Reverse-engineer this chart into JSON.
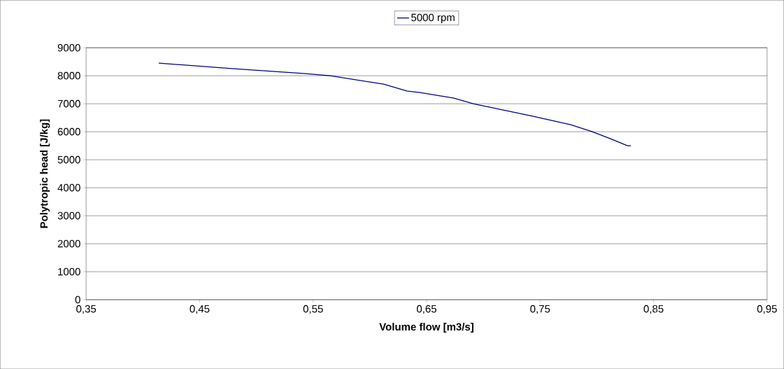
{
  "chart_data": {
    "type": "line",
    "xlabel": "Volume flow [m3/s]",
    "ylabel": "Polytropic head [J/kg]",
    "xlim": [
      0.35,
      0.95
    ],
    "ylim": [
      0,
      9000
    ],
    "xticks": [
      {
        "value": 0.35,
        "label": "0,35"
      },
      {
        "value": 0.45,
        "label": "0,45"
      },
      {
        "value": 0.55,
        "label": "0,55"
      },
      {
        "value": 0.65,
        "label": "0,65"
      },
      {
        "value": 0.75,
        "label": "0,75"
      },
      {
        "value": 0.85,
        "label": "0,85"
      },
      {
        "value": 0.95,
        "label": "0,95"
      }
    ],
    "yticks": [
      0,
      1000,
      2000,
      3000,
      4000,
      5000,
      6000,
      7000,
      8000,
      9000
    ],
    "grid": "y",
    "legend": "top",
    "marker": "none",
    "line_style": "solid",
    "series": [
      {
        "name": "5000 rpm",
        "color": "#000080",
        "x": [
          0.414,
          0.48,
          0.541,
          0.565,
          0.612,
          0.633,
          0.644,
          0.674,
          0.691,
          0.744,
          0.755,
          0.777,
          0.796,
          0.812,
          0.818,
          0.827,
          0.83
        ],
        "values": [
          8450,
          8250,
          8080,
          8000,
          7700,
          7450,
          7400,
          7200,
          7000,
          6550,
          6450,
          6250,
          6000,
          5750,
          5650,
          5500,
          5500
        ]
      }
    ]
  }
}
